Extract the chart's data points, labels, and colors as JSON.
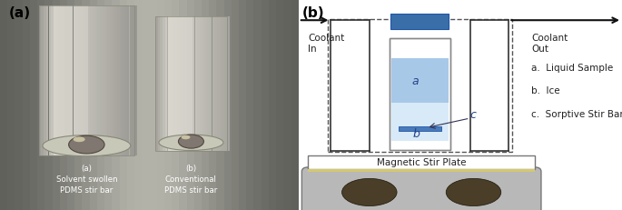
{
  "panel_a_label": "(a)",
  "panel_b_label": "(b)",
  "coolant_in_text": "Coolant\nIn",
  "coolant_out_text": "Coolant\nOut",
  "legend_items": [
    "a.  Liquid Sample",
    "b.  Ice",
    "c.  Sorptive Stir Bar"
  ],
  "magnetic_stir_plate_text": "Magnetic Stir Plate",
  "vial_cap_color": "#3a6ea8",
  "liquid_sample_color": "#a8c8e8",
  "ice_color": "#d8eaf8",
  "stir_bar_color": "#4a7ab8",
  "vial_outline_color": "#888888",
  "vial_fill_color": "#ffffff",
  "dashed_box_color": "#555555",
  "solid_line_color": "#333333",
  "stir_plate_top_color": "#ffffff",
  "stir_plate_body_color": "#b8b8b8",
  "stir_plate_circle_color": "#4a3e28",
  "arrow_color": "#111111",
  "text_color": "#222222",
  "photo_bg_color": "#4a4a4a",
  "photo_bg_light": "#888888"
}
